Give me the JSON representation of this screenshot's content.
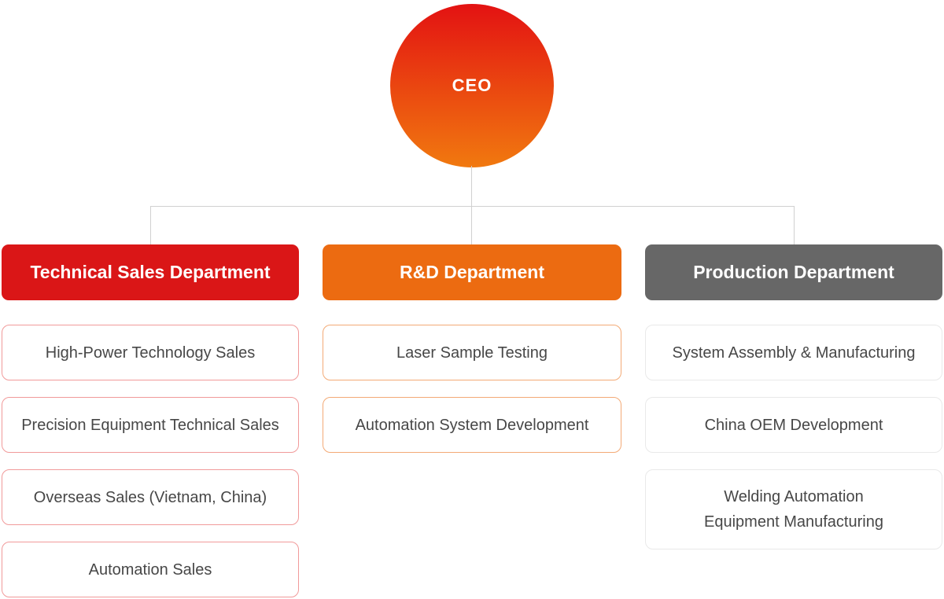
{
  "page": {
    "background_color": "#ffffff",
    "connector_color": "#d0d0d0"
  },
  "ceo": {
    "label": "CEO",
    "gradient_top_color": "#e31212",
    "gradient_bottom_color": "#f1790f",
    "text_color": "#ffffff"
  },
  "departments": [
    {
      "id": "technical-sales",
      "title": "Technical Sales Department",
      "header_color": "#da1617",
      "item_border_color": "#f19a9a",
      "items": [
        {
          "text": "High-Power Technology Sales"
        },
        {
          "text": "Precision Equipment Technical Sales"
        },
        {
          "text": "Overseas Sales (Vietnam, China)"
        },
        {
          "text": "Automation Sales"
        }
      ]
    },
    {
      "id": "rnd",
      "title": "R&D Department",
      "header_color": "#ec6b11",
      "item_border_color": "#f3aa76",
      "items": [
        {
          "text": "Laser Sample Testing"
        },
        {
          "text": "Automation System Development"
        }
      ]
    },
    {
      "id": "production",
      "title": "Production Department",
      "header_color": "#676767",
      "item_border_color": "#e9e9e9",
      "items": [
        {
          "text": "System Assembly & Manufacturing"
        },
        {
          "text": "China OEM Development"
        },
        {
          "text": "Welding Automation\nEquipment Manufacturing"
        }
      ]
    }
  ]
}
